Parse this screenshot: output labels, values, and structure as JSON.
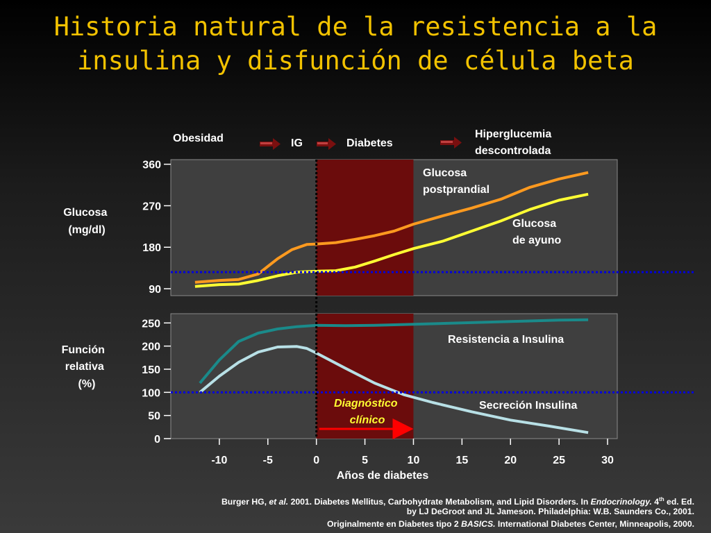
{
  "slide": {
    "title": "Historia natural de la resistencia a la insulina y disfunción de célula beta"
  },
  "colors": {
    "title": "#f2c200",
    "panel": "#3f3f3f",
    "band": "#6b0c0c",
    "postprandial": "#ff9a1f",
    "fasting": "#ffff33",
    "resistance": "#1a8a8a",
    "secretion": "#b8e0e6",
    "reference_line": "#0000dd",
    "arrow": "#ff0000",
    "diagnosis_text": "#ffff33"
  },
  "stages": [
    "Obesidad",
    "IG",
    "Diabetes",
    "Hiperglucemia descontrolada"
  ],
  "chart_data": [
    {
      "type": "line",
      "ylabel": "Glucosa (mg/dl)",
      "ylim": [
        75,
        370
      ],
      "yticks": [
        "90",
        "180",
        "270",
        "360"
      ],
      "reference_y": 126,
      "series": [
        {
          "name": "Glucosa postprandial",
          "x": [
            -12.5,
            -10,
            -8,
            -6,
            -4,
            -2.5,
            -1,
            0,
            2,
            4,
            6,
            8,
            10,
            13,
            16,
            19,
            22,
            25,
            28
          ],
          "values": [
            104,
            108,
            110,
            122,
            155,
            175,
            186,
            187,
            190,
            197,
            205,
            215,
            230,
            248,
            265,
            284,
            310,
            328,
            342
          ]
        },
        {
          "name": "Glucosa de ayuno",
          "x": [
            -12.5,
            -10,
            -8,
            -6,
            -4,
            -2,
            0,
            2,
            4,
            6,
            8,
            10,
            13,
            16,
            19,
            22,
            25,
            28
          ],
          "values": [
            95,
            99,
            100,
            108,
            118,
            126,
            128,
            129,
            137,
            150,
            164,
            177,
            193,
            215,
            237,
            262,
            282,
            295
          ]
        }
      ]
    },
    {
      "type": "line",
      "ylabel": "Función relativa (%)",
      "xlabel": "Años de diabetes",
      "xlim": [
        -15,
        31
      ],
      "xticks": [
        "-10",
        "-5",
        "0",
        "5",
        "10",
        "15",
        "20",
        "25",
        "30"
      ],
      "ylim": [
        0,
        270
      ],
      "yticks": [
        "0",
        "50",
        "100",
        "150",
        "200",
        "250"
      ],
      "reference_y": 100,
      "series": [
        {
          "name": "Resistencia a Insulina",
          "x": [
            -12,
            -10,
            -8,
            -6,
            -4,
            -2,
            0,
            3,
            6,
            10,
            15,
            20,
            25,
            28
          ],
          "values": [
            120,
            170,
            210,
            228,
            237,
            242,
            245,
            244,
            245,
            247,
            250,
            253,
            256,
            257
          ]
        },
        {
          "name": "Secreción Insulina",
          "x": [
            -12,
            -10,
            -8,
            -6,
            -4,
            -2,
            -1,
            0,
            3,
            6,
            9,
            12,
            16,
            20,
            24,
            28
          ],
          "values": [
            100,
            135,
            165,
            187,
            198,
            199,
            195,
            185,
            152,
            120,
            95,
            78,
            58,
            40,
            27,
            13
          ]
        }
      ],
      "annotations": {
        "diagnosis": "Diagnóstico clínico",
        "band_start": 0,
        "band_end": 10
      }
    }
  ],
  "reference": {
    "line1_a": "Burger HG, ",
    "line1_b": "et al.",
    "line1_c": " 2001. Diabetes Mellitus, Carbohydrate Metabolism, and Lipid Disorders. In ",
    "line1_d": "Endocrinology.",
    "line1_e": " 4",
    "line1_f": "th",
    "line1_g": " ed. Ed.",
    "line2": "by LJ DeGroot and JL Jameson. Philadelphia: W.B. Saunders Co., 2001.",
    "line3_a": "Originalmente  en Diabetes tipo 2  ",
    "line3_b": "BASICS.",
    "line3_c": " International Diabetes Center, Minneapolis, 2000."
  }
}
